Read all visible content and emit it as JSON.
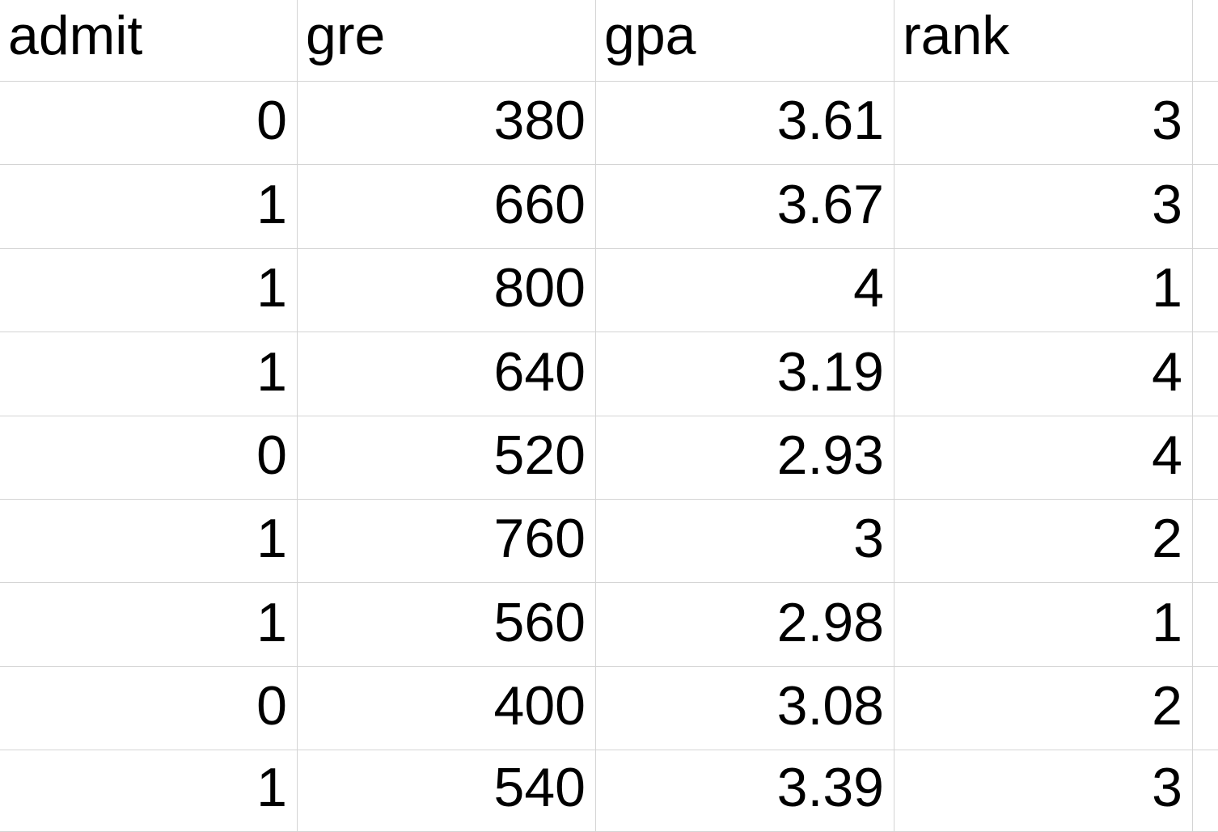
{
  "sheet": {
    "columns": [
      "admit",
      "gre",
      "gpa",
      "rank"
    ],
    "rows": [
      [
        "0",
        "380",
        "3.61",
        "3"
      ],
      [
        "1",
        "660",
        "3.67",
        "3"
      ],
      [
        "1",
        "800",
        "4",
        "1"
      ],
      [
        "1",
        "640",
        "3.19",
        "4"
      ],
      [
        "0",
        "520",
        "2.93",
        "4"
      ],
      [
        "1",
        "760",
        "3",
        "2"
      ],
      [
        "1",
        "560",
        "2.98",
        "1"
      ],
      [
        "0",
        "400",
        "3.08",
        "2"
      ],
      [
        "1",
        "540",
        "3.39",
        "3"
      ]
    ]
  }
}
